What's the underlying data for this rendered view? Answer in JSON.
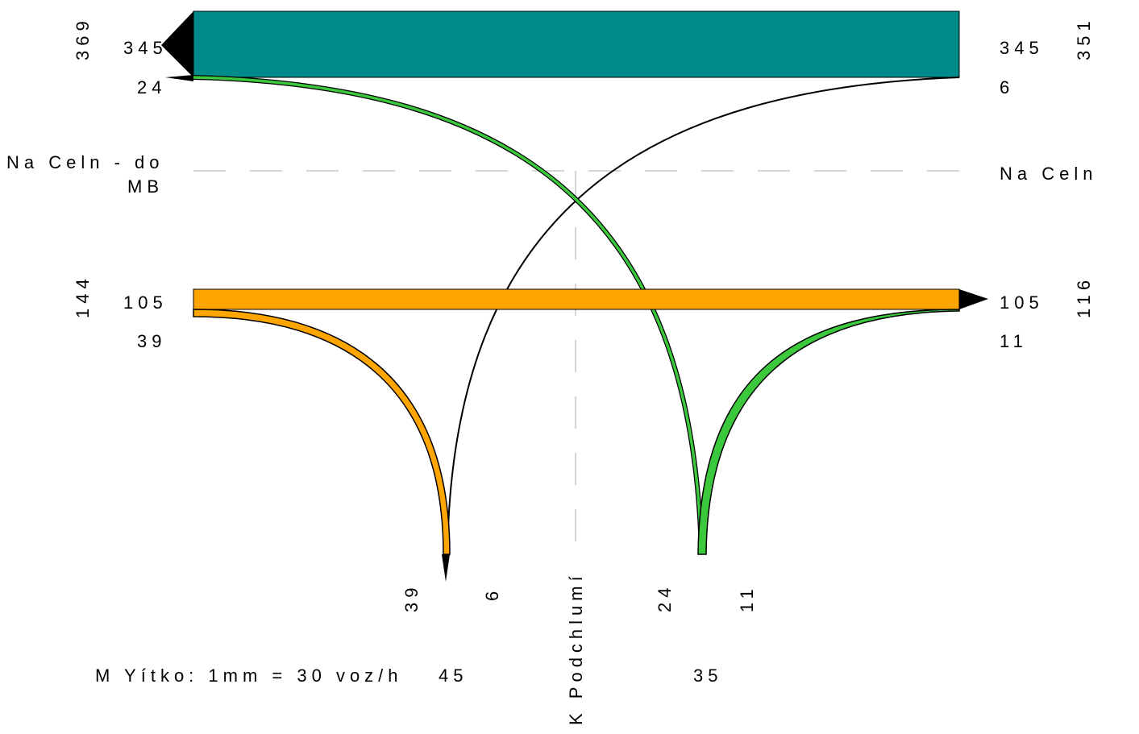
{
  "west_arm": {
    "name_line1": "Na Celn   - do",
    "name_line2": "MB",
    "top_total": "369",
    "top_through": "345",
    "top_turn": "24",
    "bottom_total": "144",
    "bottom_through": "105",
    "bottom_turn": "39"
  },
  "east_arm": {
    "name": "Na Celn",
    "top_total": "351",
    "top_through": "345",
    "top_turn": "6",
    "bottom_total": "116",
    "bottom_through": "105",
    "bottom_turn": "11"
  },
  "south_arm": {
    "name": "K Podchlumí",
    "left_in_a": "39",
    "left_in_b": "6",
    "left_total": "45",
    "right_in_a": "24",
    "right_in_b": "11",
    "right_total": "35"
  },
  "scale_text": "M Yítko: 1mm = 30 voz/h",
  "colors": {
    "through_upper": "#008b8b",
    "through_lower": "#ffa500",
    "turn_green": "#3cc83c",
    "line": "#000000"
  }
}
